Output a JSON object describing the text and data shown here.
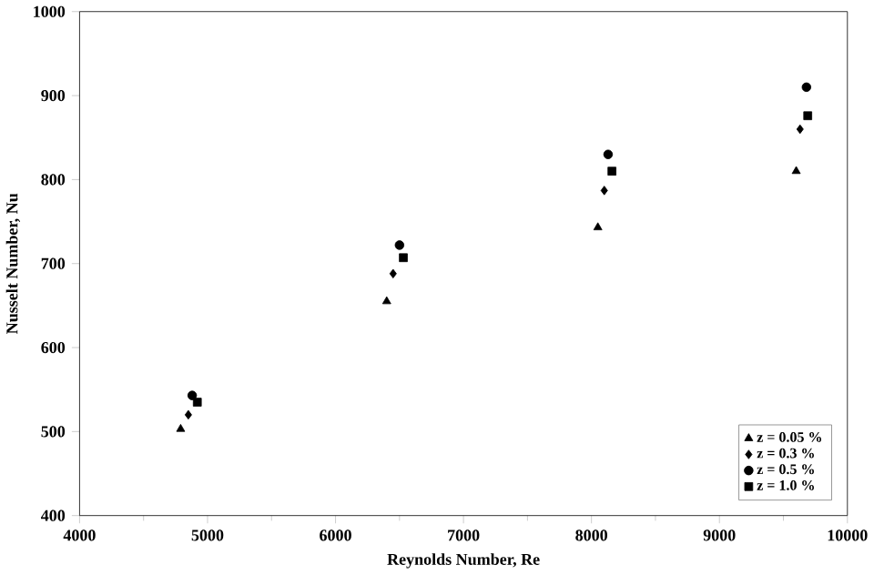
{
  "chart_data": {
    "type": "scatter",
    "xlabel": "Reynolds Number, Re",
    "ylabel": "Nusselt Number, Nu",
    "xlim": [
      4000,
      10000
    ],
    "ylim": [
      400,
      1000
    ],
    "xticks": [
      4000,
      5000,
      6000,
      7000,
      8000,
      9000,
      10000
    ],
    "yticks": [
      400,
      500,
      600,
      700,
      800,
      900,
      1000
    ],
    "grid": false,
    "legend": "bottom right",
    "series": [
      {
        "name": "z = 0.05 %",
        "color": "#000000",
        "marker": "triangle",
        "x": [
          4790,
          6400,
          8050,
          9600
        ],
        "values": [
          503,
          655,
          743,
          810
        ]
      },
      {
        "name": "z = 0.3 %",
        "color": "#000000",
        "marker": "diamond",
        "x": [
          4850,
          6450,
          8100,
          9630
        ],
        "values": [
          520,
          688,
          787,
          860
        ]
      },
      {
        "name": "z = 0.5 %",
        "color": "#000000",
        "marker": "circle",
        "x": [
          4880,
          6500,
          8130,
          9680
        ],
        "values": [
          543,
          722,
          830,
          910
        ]
      },
      {
        "name": "z = 1.0 %",
        "color": "#000000",
        "marker": "square",
        "x": [
          4920,
          6530,
          8160,
          9690
        ],
        "values": [
          535,
          707,
          810,
          876
        ]
      }
    ]
  }
}
